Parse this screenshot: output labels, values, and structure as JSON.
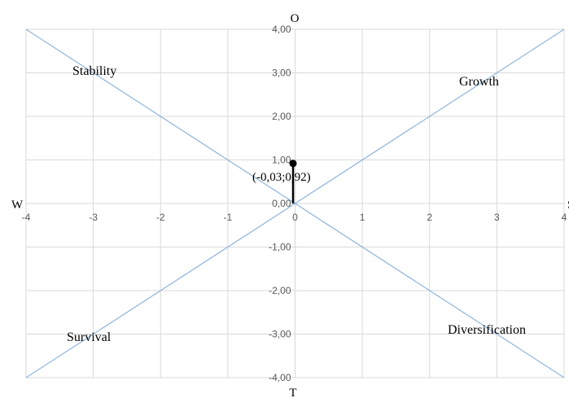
{
  "chart_data": {
    "type": "scatter",
    "x_range": [
      -4,
      4
    ],
    "y_range": [
      -4,
      4
    ],
    "x_ticks": [
      "-4",
      "-3",
      "-2",
      "-1",
      "0",
      "1",
      "2",
      "3",
      "4"
    ],
    "y_ticks": [
      "4,00",
      "3,00",
      "2,00",
      "1,00",
      "0,00",
      "-1,00",
      "-2,00",
      "-3,00",
      "-4,00"
    ],
    "grid": true,
    "axis_names": {
      "top": "O",
      "bottom": "T",
      "left": "W",
      "right": "S"
    },
    "quadrants": {
      "top_left": "Stability",
      "top_right": "Growth",
      "bottom_left": "Survival",
      "bottom_right": "Diversification"
    },
    "diagonals": [
      {
        "from": [
          -4,
          4
        ],
        "to": [
          4,
          -4
        ]
      },
      {
        "from": [
          -4,
          -4
        ],
        "to": [
          4,
          4
        ]
      }
    ],
    "point": {
      "x": -0.03,
      "y": 0.92,
      "label": "(-0,03;0,92)"
    },
    "colors": {
      "grid": "#d9d9d9",
      "diagonal": "#8fb5dc",
      "point": "#000000",
      "tick_text": "#595959"
    }
  }
}
